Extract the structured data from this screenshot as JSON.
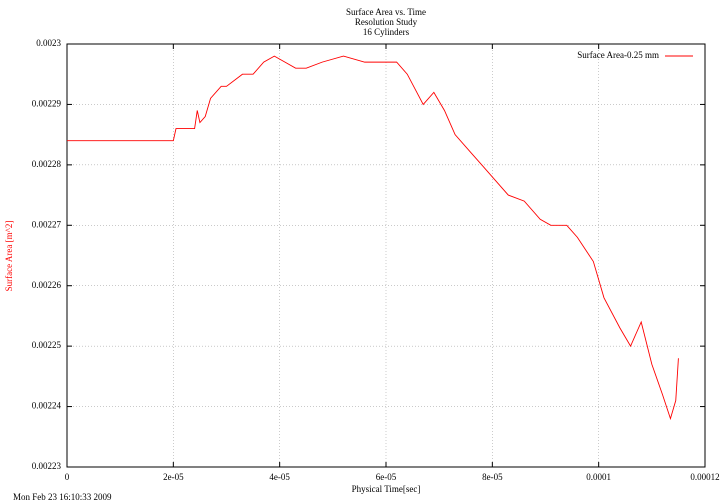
{
  "chart_data": {
    "type": "line",
    "title": "Surface Area vs. Time",
    "subtitle": [
      "Resolution Study",
      "16 Cylinders"
    ],
    "x_label": "Physical Time[sec]",
    "y_label": "Surface Area [m^2]",
    "timestamp": "Mon Feb 23 16:10:33 2009",
    "x": [
      0,
      1e-05,
      2e-05,
      2.05e-05,
      2.4e-05,
      2.45e-05,
      2.5e-05,
      2.6e-05,
      2.7e-05,
      2.9e-05,
      3e-05,
      3.3e-05,
      3.5e-05,
      3.7e-05,
      3.9e-05,
      4.1e-05,
      4.3e-05,
      4.5e-05,
      4.8e-05,
      5.2e-05,
      5.6e-05,
      6.2e-05,
      6.4e-05,
      6.7e-05,
      6.9e-05,
      7.1e-05,
      7.3e-05,
      7.6e-05,
      7.8e-05,
      8e-05,
      8.3e-05,
      8.6e-05,
      8.9e-05,
      9.1e-05,
      9.4e-05,
      9.6e-05,
      9.9e-05,
      0.000101,
      0.000104,
      0.000106,
      0.000108,
      0.00011,
      0.000112,
      0.0001135,
      0.0001145,
      0.000115
    ],
    "series": [
      {
        "name": "Surface Area-0.25 mm",
        "color": "#ff0000",
        "values": [
          0.002284,
          0.002284,
          0.002284,
          0.002286,
          0.002286,
          0.002289,
          0.002287,
          0.002288,
          0.002291,
          0.002293,
          0.002293,
          0.002295,
          0.002295,
          0.002297,
          0.002298,
          0.002297,
          0.002296,
          0.002296,
          0.002297,
          0.002298,
          0.002297,
          0.002297,
          0.002295,
          0.00229,
          0.002292,
          0.002289,
          0.002285,
          0.002282,
          0.00228,
          0.002278,
          0.002275,
          0.002274,
          0.002271,
          0.00227,
          0.00227,
          0.002268,
          0.002264,
          0.002258,
          0.002253,
          0.00225,
          0.002254,
          0.002247,
          0.002242,
          0.002238,
          0.002241,
          0.002248
        ]
      }
    ],
    "xlim": [
      0,
      0.00012
    ],
    "xticks": [
      0,
      {
        "value": 2e-05,
        "label": "2e-05"
      },
      {
        "value": 4e-05,
        "label": "4e-05"
      },
      {
        "value": 6e-05,
        "label": "6e-05"
      },
      {
        "value": 8e-05,
        "label": "8e-05"
      },
      0.0001,
      0.00012
    ],
    "ylim": [
      0.00223,
      0.0023
    ],
    "yticks": [
      0.00223,
      0.00224,
      0.00225,
      0.00226,
      0.00227,
      0.00228,
      0.00229,
      0.0023
    ],
    "grid": true,
    "legend": "upper right"
  }
}
